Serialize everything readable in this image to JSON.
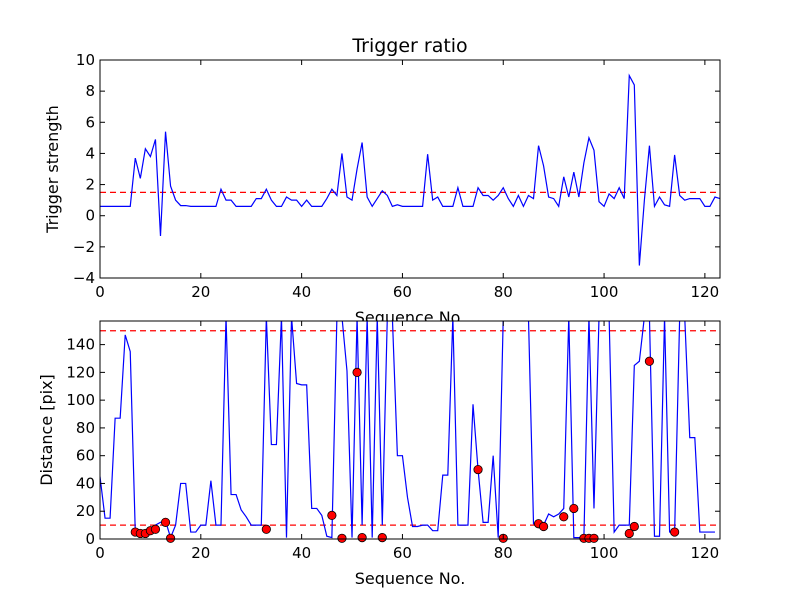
{
  "charts": [
    {
      "type": "line",
      "title": "Trigger ratio",
      "xlabel": "Sequence No.",
      "ylabel": "Trigger strength",
      "xlim": [
        0,
        123
      ],
      "ylim": [
        -4,
        10
      ],
      "xticks": [
        "0",
        "20",
        "40",
        "60",
        "80",
        "100",
        "120"
      ],
      "yticks": [
        "−4",
        "−2",
        "0",
        "2",
        "4",
        "6",
        "8",
        "10"
      ],
      "grid": false,
      "line_color": "#0000ff",
      "threshold_color": "#ff0000",
      "threshold": 1.5,
      "x_start": 0,
      "y": [
        0.6,
        0.6,
        0.6,
        0.6,
        0.6,
        0.6,
        0.6,
        3.7,
        2.4,
        4.3,
        3.8,
        4.9,
        -1.3,
        5.4,
        1.9,
        1.0,
        0.65,
        0.65,
        0.6,
        0.6,
        0.6,
        0.6,
        0.6,
        0.6,
        1.7,
        1.0,
        1.0,
        0.6,
        0.6,
        0.6,
        0.6,
        1.1,
        1.1,
        1.7,
        1.0,
        0.6,
        0.6,
        1.2,
        1.0,
        1.0,
        0.6,
        1.0,
        0.6,
        0.6,
        0.6,
        1.1,
        1.7,
        1.3,
        4.0,
        1.2,
        1.0,
        3.0,
        4.7,
        1.2,
        0.6,
        1.1,
        1.6,
        1.3,
        0.6,
        0.7,
        0.6,
        0.6,
        0.6,
        0.6,
        0.6,
        3.95,
        1.0,
        1.2,
        0.6,
        0.6,
        0.6,
        1.8,
        0.6,
        0.6,
        0.6,
        1.8,
        1.3,
        1.3,
        1.0,
        1.3,
        1.8,
        1.1,
        0.6,
        1.3,
        0.6,
        1.3,
        1.1,
        4.5,
        3.2,
        1.2,
        1.1,
        0.6,
        2.5,
        1.2,
        2.8,
        1.2,
        3.4,
        5.0,
        4.2,
        0.9,
        0.6,
        1.4,
        1.1,
        1.8,
        1.1,
        9.0,
        8.4,
        -3.2,
        1.0,
        4.5,
        0.6,
        1.2,
        0.7,
        0.6,
        3.9,
        1.3,
        1.0,
        1.1,
        1.1,
        1.1,
        0.6,
        0.6,
        1.2,
        1.1
      ]
    },
    {
      "type": "line",
      "xlabel": "Sequence No.",
      "ylabel": "Distance [pix]",
      "xlim": [
        0,
        123
      ],
      "ylim": [
        0,
        157
      ],
      "xticks": [
        "0",
        "20",
        "40",
        "60",
        "80",
        "100",
        "120"
      ],
      "yticks": [
        "0",
        "20",
        "40",
        "60",
        "80",
        "100",
        "120",
        "140"
      ],
      "grid": false,
      "line_color": "#0000ff",
      "threshold_color": "#ff0000",
      "marker_color": "#ff0000",
      "thresholds": [
        10,
        150
      ],
      "x_start": 0,
      "y": [
        45,
        15,
        15,
        87,
        87,
        147,
        135,
        5,
        5,
        5,
        5,
        10,
        12,
        13,
        1,
        10,
        40,
        40,
        5,
        5,
        10,
        10,
        42,
        10,
        10,
        160,
        32,
        32,
        21,
        16,
        10,
        10,
        10,
        160,
        68,
        68,
        160,
        1,
        160,
        112,
        111,
        111,
        22,
        22,
        17,
        2,
        1,
        160,
        160,
        121,
        1,
        160,
        10,
        160,
        1,
        160,
        10,
        160,
        160,
        60,
        60,
        30,
        9,
        9,
        10,
        10,
        6,
        6,
        46,
        46,
        160,
        10,
        10,
        10,
        97,
        50,
        12,
        12,
        60,
        1,
        160,
        160,
        160,
        160,
        160,
        160,
        11,
        10,
        10,
        18,
        16,
        18,
        22,
        160,
        1,
        1,
        1,
        160,
        22,
        160,
        160,
        160,
        5,
        10,
        10,
        10,
        125,
        128,
        160,
        160,
        2,
        2,
        160,
        5,
        5,
        160,
        160,
        73,
        73,
        5,
        5,
        5,
        5
      ],
      "markers": [
        {
          "x": 7,
          "y": 5
        },
        {
          "x": 8,
          "y": 4
        },
        {
          "x": 9,
          "y": 4
        },
        {
          "x": 10,
          "y": 6
        },
        {
          "x": 11,
          "y": 7
        },
        {
          "x": 13,
          "y": 12
        },
        {
          "x": 14,
          "y": 0.5
        },
        {
          "x": 33,
          "y": 7
        },
        {
          "x": 46,
          "y": 17
        },
        {
          "x": 48,
          "y": 0.5
        },
        {
          "x": 51,
          "y": 120
        },
        {
          "x": 52,
          "y": 1
        },
        {
          "x": 56,
          "y": 1
        },
        {
          "x": 75,
          "y": 50
        },
        {
          "x": 80,
          "y": 0.5
        },
        {
          "x": 87,
          "y": 11
        },
        {
          "x": 88,
          "y": 9
        },
        {
          "x": 92,
          "y": 16
        },
        {
          "x": 94,
          "y": 22
        },
        {
          "x": 96,
          "y": 0.5
        },
        {
          "x": 97,
          "y": 0.5
        },
        {
          "x": 98,
          "y": 0.5
        },
        {
          "x": 105,
          "y": 4
        },
        {
          "x": 106,
          "y": 9
        },
        {
          "x": 109,
          "y": 128
        },
        {
          "x": 114,
          "y": 5
        }
      ]
    }
  ]
}
